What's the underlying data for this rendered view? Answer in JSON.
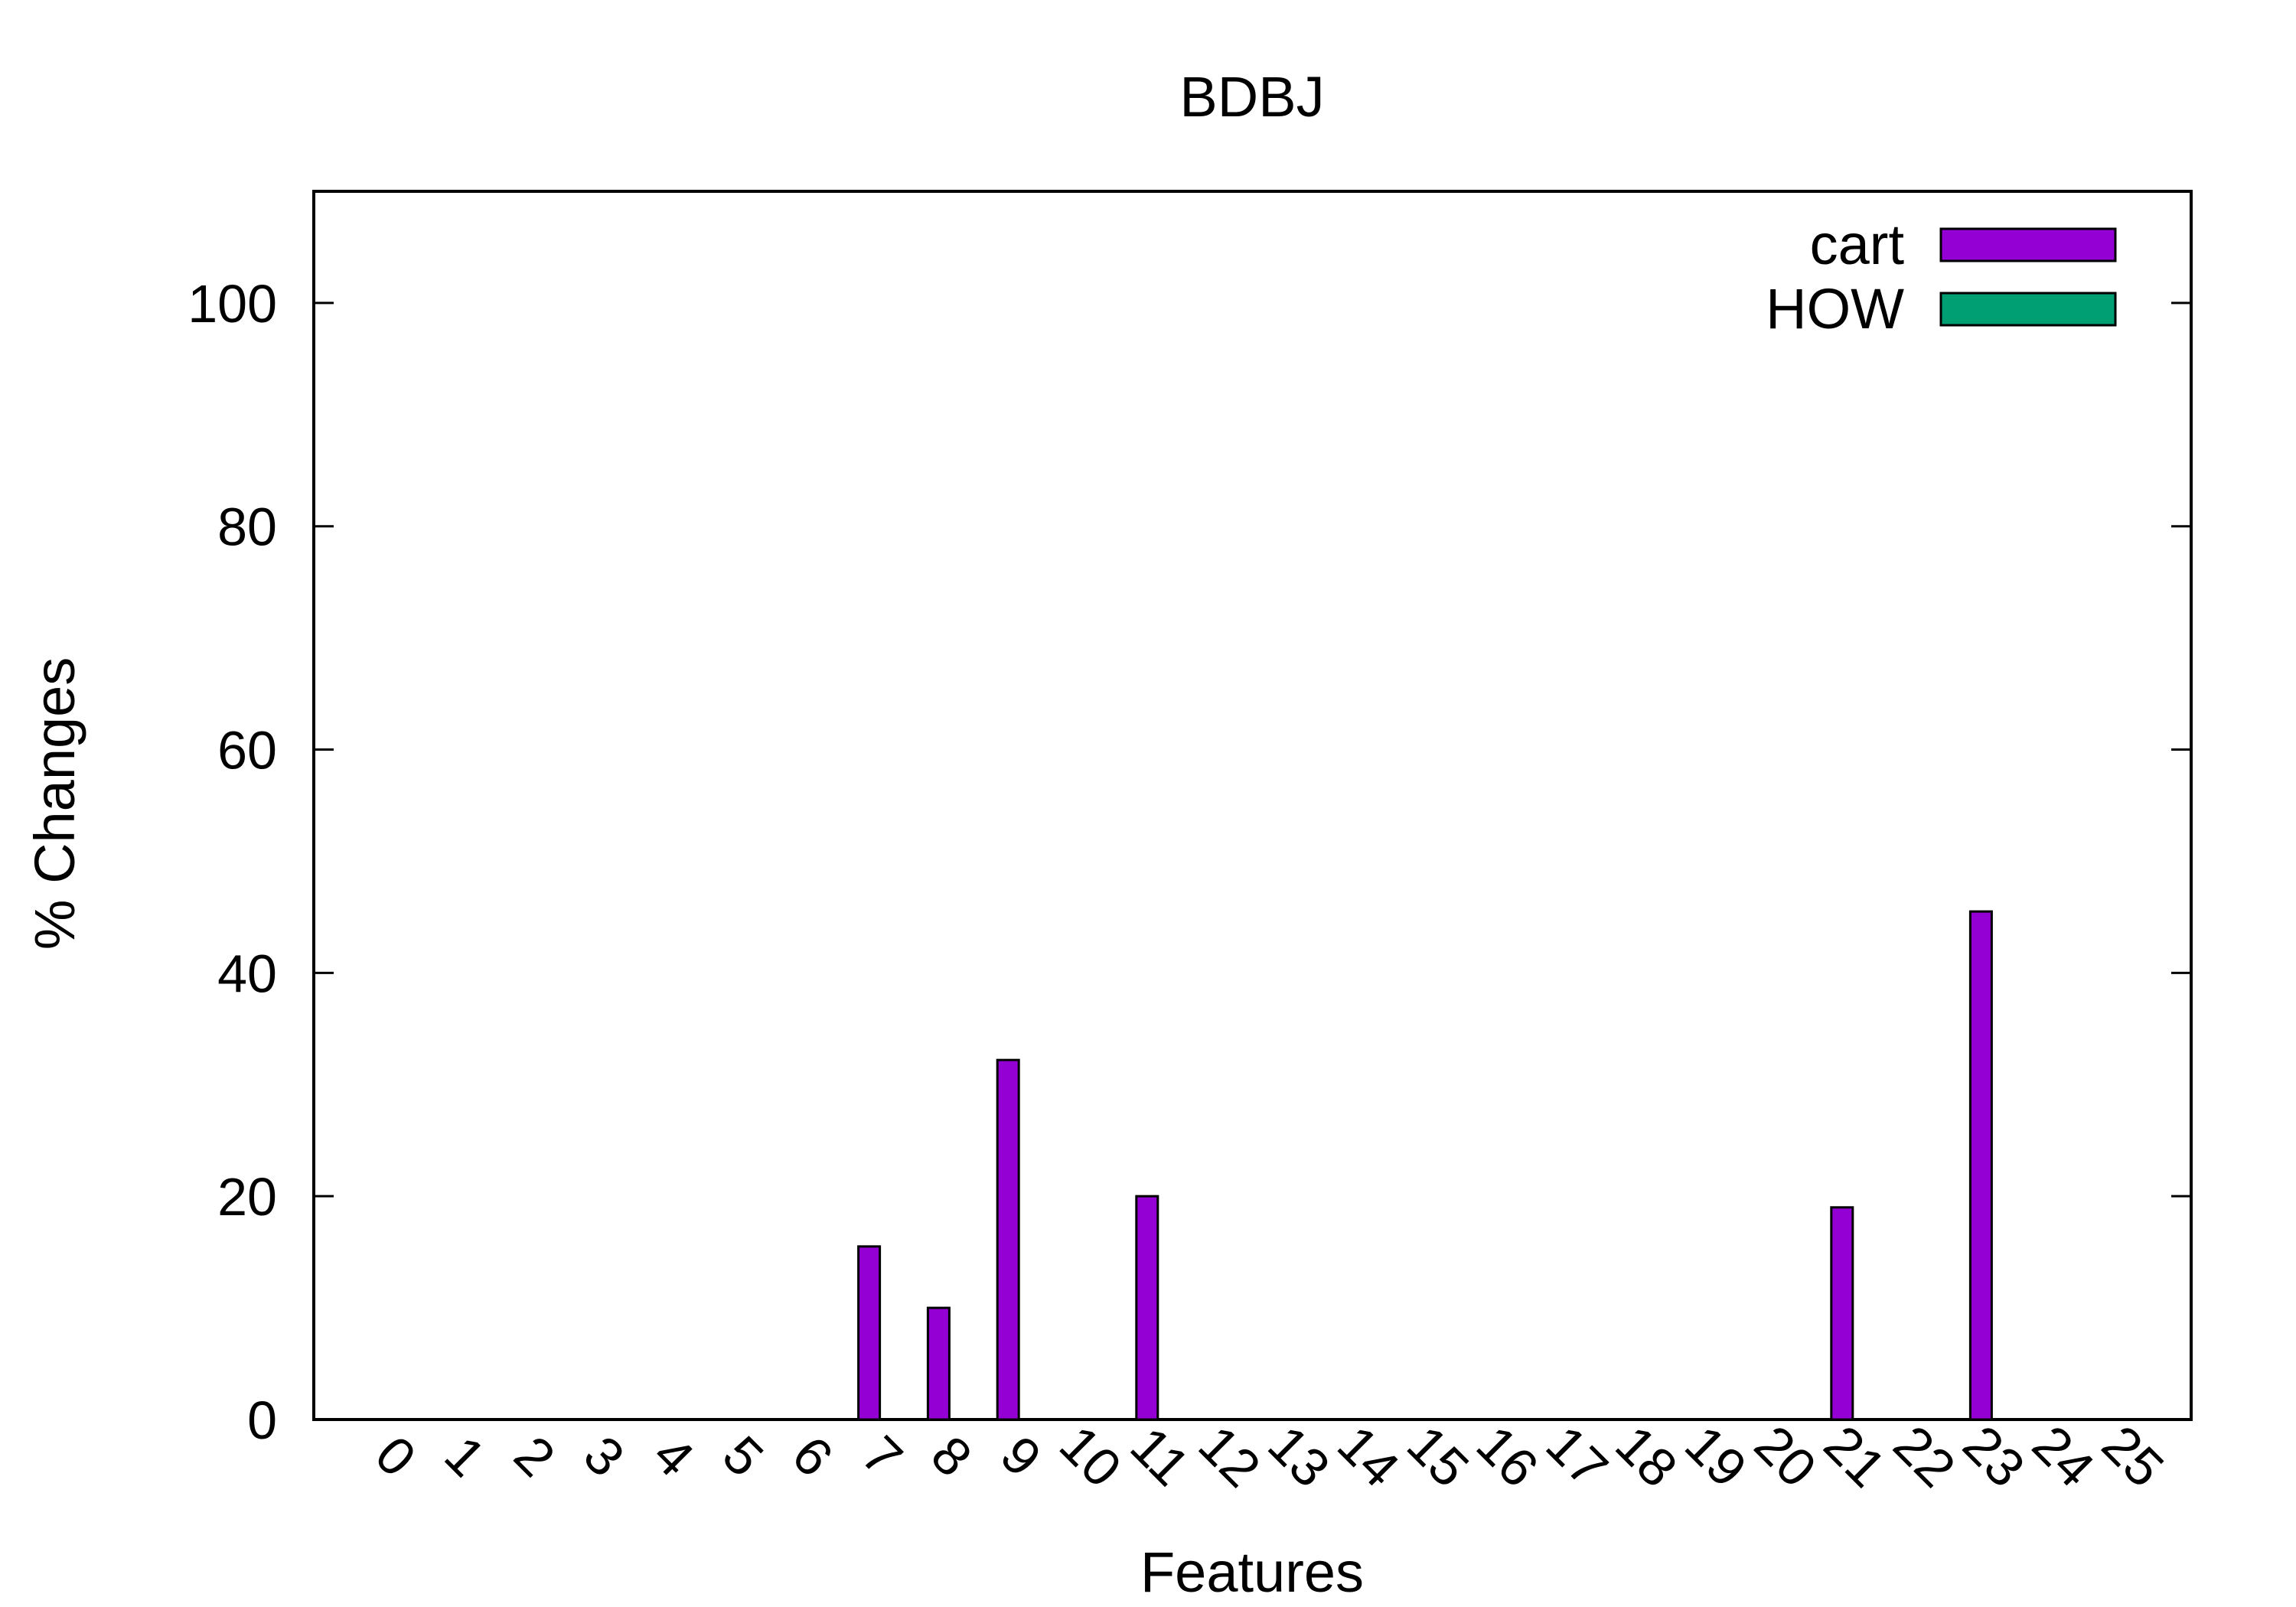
{
  "chart_data": {
    "type": "bar",
    "title": "BDBJ",
    "xlabel": "Features",
    "ylabel": "% Changes",
    "ylim": [
      0,
      110
    ],
    "yticks": [
      "0",
      "20",
      "40",
      "60",
      "80",
      "100"
    ],
    "categories": [
      "0",
      "1",
      "2",
      "3",
      "4",
      "5",
      "6",
      "7",
      "8",
      "9",
      "10",
      "11",
      "12",
      "13",
      "14",
      "15",
      "16",
      "17",
      "18",
      "19",
      "20",
      "21",
      "22",
      "23",
      "24",
      "25"
    ],
    "series": [
      {
        "name": "cart",
        "color": "#9400D3",
        "values": [
          0,
          0,
          0,
          0,
          0,
          0,
          0,
          15.5,
          10,
          32.2,
          0,
          20,
          0,
          0,
          0,
          0,
          0,
          0,
          0,
          0,
          0,
          19,
          0,
          45.5,
          0,
          0
        ]
      },
      {
        "name": "HOW",
        "color": "#009E73",
        "values": [
          0,
          0,
          0,
          0,
          0,
          0,
          0,
          0,
          0,
          0,
          0,
          0,
          0,
          0,
          0,
          0,
          0,
          0,
          0,
          0,
          0,
          0,
          0,
          0,
          0,
          0
        ]
      }
    ],
    "legend": "top-right",
    "grid": false
  }
}
